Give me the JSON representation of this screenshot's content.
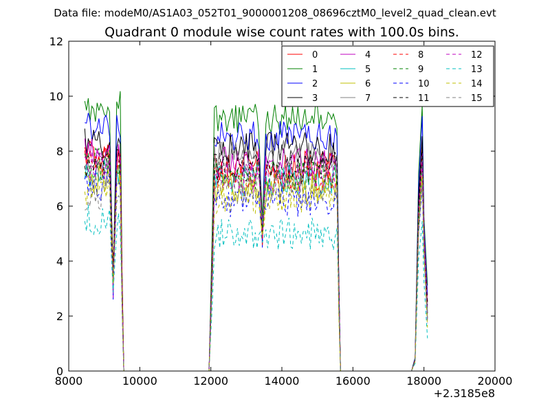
{
  "chart_data": {
    "type": "line",
    "supertitle": "Data file: modeM0/AS1A03_052T01_9000001208_08696cztM0_level2_quad_clean.evt",
    "title": "Quadrant 0 module wise count rates with 100.0s bins.",
    "xlabel": "",
    "ylabel": "",
    "xlim": [
      8000,
      20000
    ],
    "ylim": [
      0,
      12
    ],
    "x_offset_label": "+2.3185e8",
    "x_ticks": [
      "8000",
      "10000",
      "12000",
      "14000",
      "16000",
      "18000",
      "20000"
    ],
    "y_ticks": [
      "0",
      "2",
      "4",
      "6",
      "8",
      "10",
      "12"
    ],
    "grid": false,
    "legend_position": "top-right",
    "series": [
      {
        "name": "0",
        "color": "#ff0000",
        "style": "solid"
      },
      {
        "name": "1",
        "color": "#008000",
        "style": "solid"
      },
      {
        "name": "2",
        "color": "#0000ff",
        "style": "solid"
      },
      {
        "name": "3",
        "color": "#000000",
        "style": "solid"
      },
      {
        "name": "4",
        "color": "#bf00bf",
        "style": "solid"
      },
      {
        "name": "5",
        "color": "#00bfbf",
        "style": "solid"
      },
      {
        "name": "6",
        "color": "#bfbf00",
        "style": "solid"
      },
      {
        "name": "7",
        "color": "#808080",
        "style": "solid"
      },
      {
        "name": "8",
        "color": "#ff0000",
        "style": "dashed"
      },
      {
        "name": "9",
        "color": "#008000",
        "style": "dashed"
      },
      {
        "name": "10",
        "color": "#0000ff",
        "style": "dashed"
      },
      {
        "name": "11",
        "color": "#000000",
        "style": "dashed"
      },
      {
        "name": "12",
        "color": "#bf00bf",
        "style": "dashed"
      },
      {
        "name": "13",
        "color": "#00bfbf",
        "style": "dashed"
      },
      {
        "name": "14",
        "color": "#bfbf00",
        "style": "dashed"
      },
      {
        "name": "15",
        "color": "#808080",
        "style": "dashed"
      }
    ],
    "segments": [
      {
        "start": 8450,
        "end": 9500,
        "means": [
          7.8,
          9.6,
          8.9,
          8.3,
          7.9,
          7.2,
          7.0,
          7.1,
          7.6,
          7.5,
          6.8,
          7.6,
          7.4,
          5.5,
          6.6,
          6.4
        ],
        "dip_x": 9250,
        "dip_value": 3.2
      },
      {
        "start": 12050,
        "end": 15600,
        "means": [
          7.4,
          9.2,
          8.6,
          8.1,
          7.6,
          6.9,
          6.7,
          7.8,
          7.1,
          7.1,
          6.2,
          7.4,
          7.0,
          5.0,
          6.3,
          6.6
        ],
        "dip_x": 13450,
        "dip_value": 5.0
      },
      {
        "start": 17750,
        "end": 18100,
        "means": [
          8.2,
          9.8,
          9.4,
          8.6,
          8.0,
          7.4,
          7.2,
          7.5,
          7.8,
          7.8,
          7.0,
          7.9,
          7.6,
          5.6,
          7.0,
          7.0
        ],
        "peak_x": 17950
      }
    ],
    "zero_level": 0
  }
}
